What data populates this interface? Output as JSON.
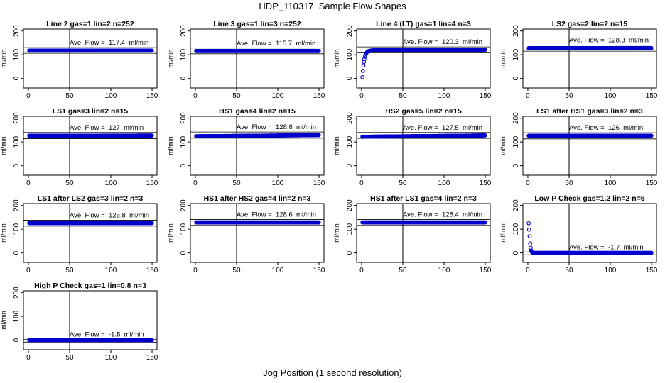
{
  "title": "HDP_110317  Sample Flow Shapes",
  "xlabel": "Jog Position (1 second resolution)",
  "chart_data": [
    {
      "type": "scatter",
      "title": "Line 2 gas=1 lin=2 n=252",
      "ylabel": "ml/min",
      "xlim": [
        0,
        150
      ],
      "ylim": [
        0,
        200
      ],
      "xticks": [
        0,
        50,
        100,
        150
      ],
      "yticks": [
        0,
        100,
        200
      ],
      "vline": 50,
      "ave_label": "Ave. Flow =  117.4  ml/min",
      "ave_value": 117.4,
      "band": [
        106,
        130
      ],
      "series": [
        {
          "x": [
            1,
            150
          ],
          "y": [
            117.4,
            117.4
          ]
        }
      ]
    },
    {
      "type": "scatter",
      "title": "Line 3 gas=1 lin=3 n=252",
      "ylabel": "ml/min",
      "xlim": [
        0,
        150
      ],
      "ylim": [
        0,
        200
      ],
      "xticks": [
        0,
        50,
        100,
        150
      ],
      "yticks": [
        0,
        100,
        200
      ],
      "vline": 50,
      "ave_label": "Ave. Flow =  115.7  ml/min",
      "ave_value": 115.7,
      "band": [
        104,
        128
      ],
      "series": [
        {
          "x": [
            1,
            150
          ],
          "y": [
            115.7,
            115.7
          ]
        }
      ]
    },
    {
      "type": "scatter",
      "title": "Line 4 (LT) gas=1 lin=4 n=3",
      "ylabel": "ml/min",
      "xlim": [
        0,
        150
      ],
      "ylim": [
        0,
        200
      ],
      "xticks": [
        0,
        50,
        100,
        150
      ],
      "yticks": [
        0,
        100,
        200
      ],
      "vline": 50,
      "ave_label": "Ave. Flow =  120.3  ml/min",
      "ave_value": 120.3,
      "band": [
        108,
        133
      ],
      "series": [
        {
          "x": [
            1,
            2,
            3,
            4,
            5,
            6,
            7,
            8,
            10,
            12,
            15,
            20,
            150
          ],
          "y": [
            5,
            50,
            75,
            92,
            102,
            108,
            112,
            115,
            117,
            118,
            119,
            120,
            121
          ]
        }
      ]
    },
    {
      "type": "scatter",
      "title": "LS2 gas=2 lin=2 n=15",
      "ylabel": "ml/min",
      "xlim": [
        0,
        150
      ],
      "ylim": [
        0,
        200
      ],
      "xticks": [
        0,
        50,
        100,
        150
      ],
      "yticks": [
        0,
        100,
        200
      ],
      "vline": 50,
      "ave_label": "Ave. Flow =  128.3  ml/min",
      "ave_value": 128.3,
      "band": [
        115,
        141
      ],
      "series": [
        {
          "x": [
            1,
            150
          ],
          "y": [
            127.5,
            128.3
          ]
        }
      ]
    },
    {
      "type": "scatter",
      "title": "LS1 gas=3 lin=2 n=15",
      "ylabel": "ml/min",
      "xlim": [
        0,
        150
      ],
      "ylim": [
        0,
        200
      ],
      "xticks": [
        0,
        50,
        100,
        150
      ],
      "yticks": [
        0,
        100,
        200
      ],
      "vline": 50,
      "ave_label": "Ave. Flow =  127  ml/min",
      "ave_value": 127,
      "band": [
        114,
        140
      ],
      "series": [
        {
          "x": [
            1,
            150
          ],
          "y": [
            126,
            127
          ]
        }
      ]
    },
    {
      "type": "scatter",
      "title": "HS1 gas=4 lin=2 n=15",
      "ylabel": "ml/min",
      "xlim": [
        0,
        150
      ],
      "ylim": [
        0,
        200
      ],
      "xticks": [
        0,
        50,
        100,
        150
      ],
      "yticks": [
        0,
        100,
        200
      ],
      "vline": 50,
      "ave_label": "Ave. Flow =  128.8  ml/min",
      "ave_value": 128.8,
      "band": [
        116,
        142
      ],
      "series": [
        {
          "x": [
            1,
            150
          ],
          "y": [
            124,
            128.8
          ]
        }
      ]
    },
    {
      "type": "scatter",
      "title": "HS2 gas=5 lin=2 n=15",
      "ylabel": "ml/min",
      "xlim": [
        0,
        150
      ],
      "ylim": [
        0,
        200
      ],
      "xticks": [
        0,
        50,
        100,
        150
      ],
      "yticks": [
        0,
        100,
        200
      ],
      "vline": 50,
      "ave_label": "Ave. Flow =  127.5  ml/min",
      "ave_value": 127.5,
      "band": [
        115,
        140
      ],
      "series": [
        {
          "x": [
            1,
            150
          ],
          "y": [
            122,
            127.5
          ]
        }
      ]
    },
    {
      "type": "scatter",
      "title": "LS1 after HS1 gas=3 lin=2 n=3",
      "ylabel": "ml/min",
      "xlim": [
        0,
        150
      ],
      "ylim": [
        0,
        200
      ],
      "xticks": [
        0,
        50,
        100,
        150
      ],
      "yticks": [
        0,
        100,
        200
      ],
      "vline": 50,
      "ave_label": "Ave. Flow =  126  ml/min",
      "ave_value": 126,
      "band": [
        113,
        139
      ],
      "series": [
        {
          "x": [
            1,
            150
          ],
          "y": [
            126,
            126
          ]
        }
      ]
    },
    {
      "type": "scatter",
      "title": "LS1 after LS2 gas=3 lin=2 n=3",
      "ylabel": "ml/min",
      "xlim": [
        0,
        150
      ],
      "ylim": [
        0,
        200
      ],
      "xticks": [
        0,
        50,
        100,
        150
      ],
      "yticks": [
        0,
        100,
        200
      ],
      "vline": 50,
      "ave_label": "Ave. Flow =  125.8  ml/min",
      "ave_value": 125.8,
      "band": [
        113,
        138
      ],
      "series": [
        {
          "x": [
            1,
            150
          ],
          "y": [
            125.8,
            125.8
          ]
        }
      ]
    },
    {
      "type": "scatter",
      "title": "HS1 after HS2 gas=4 lin=2 n=3",
      "ylabel": "ml/min",
      "xlim": [
        0,
        150
      ],
      "ylim": [
        0,
        200
      ],
      "xticks": [
        0,
        50,
        100,
        150
      ],
      "yticks": [
        0,
        100,
        200
      ],
      "vline": 50,
      "ave_label": "Ave. Flow =  128.6  ml/min",
      "ave_value": 128.6,
      "band": [
        116,
        141
      ],
      "series": [
        {
          "x": [
            1,
            150
          ],
          "y": [
            128.6,
            128.6
          ]
        }
      ]
    },
    {
      "type": "scatter",
      "title": "HS1 after LS1 gas=4 lin=2 n=3",
      "ylabel": "ml/min",
      "xlim": [
        0,
        150
      ],
      "ylim": [
        0,
        200
      ],
      "xticks": [
        0,
        50,
        100,
        150
      ],
      "yticks": [
        0,
        100,
        200
      ],
      "vline": 50,
      "ave_label": "Ave. Flow =  128.4  ml/min",
      "ave_value": 128.4,
      "band": [
        116,
        141
      ],
      "series": [
        {
          "x": [
            1,
            150
          ],
          "y": [
            128.4,
            128.4
          ]
        }
      ]
    },
    {
      "type": "scatter",
      "title": "Low P Check gas=1.2 lin=2 n=6",
      "ylabel": "ml/min",
      "xlim": [
        0,
        150
      ],
      "ylim": [
        0,
        200
      ],
      "xticks": [
        0,
        50,
        100,
        150
      ],
      "yticks": [
        0,
        100,
        200
      ],
      "vline": 50,
      "ave_label": "Ave. Flow =  -1.7  ml/min",
      "ave_value": -1.7,
      "band": [
        -8,
        4
      ],
      "series": [
        {
          "x": [
            1,
            2,
            3,
            4,
            5,
            6,
            8,
            10,
            150
          ],
          "y": [
            125,
            80,
            30,
            10,
            3,
            1,
            0,
            0,
            0
          ]
        }
      ]
    },
    {
      "type": "scatter",
      "title": "High P Check gas=1 lin=0.8 n=3",
      "ylabel": "ml/min",
      "xlim": [
        0,
        150
      ],
      "ylim": [
        0,
        200
      ],
      "xticks": [
        0,
        50,
        100,
        150
      ],
      "yticks": [
        0,
        100,
        200
      ],
      "vline": 50,
      "ave_label": "Ave. Flow =  -1.5  ml/min",
      "ave_value": -1.5,
      "band": [
        -8,
        4
      ],
      "series": [
        {
          "x": [
            1,
            150
          ],
          "y": [
            0,
            0
          ]
        }
      ]
    }
  ],
  "colors": {
    "points": "#0000cc",
    "lines": "#000000"
  }
}
